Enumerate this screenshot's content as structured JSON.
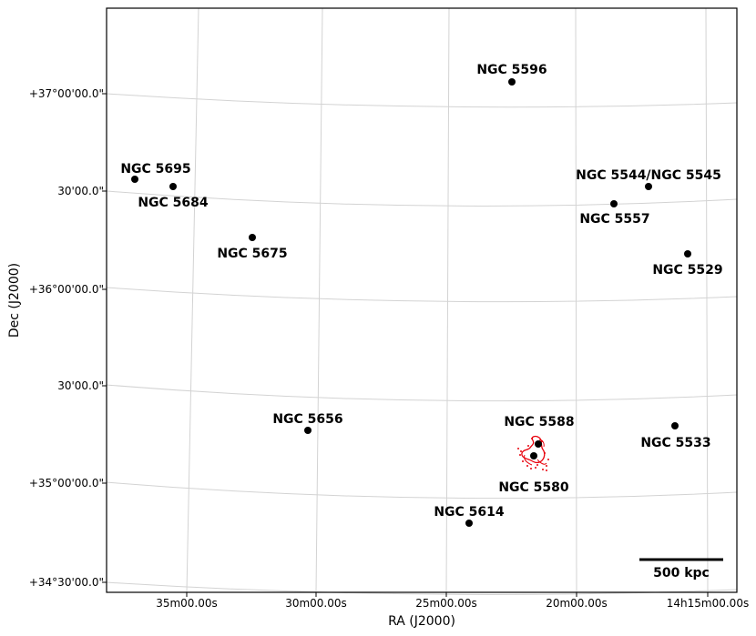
{
  "chart_data": {
    "type": "scatter",
    "xlabel": "RA (J2000)",
    "ylabel": "Dec (J2000)",
    "x_ticks": [
      "35m00.00s",
      "30m00.00s",
      "25m00.00s",
      "20m00.00s",
      "14h15m00.00s"
    ],
    "y_ticks": [
      "+37°00'00.0\"",
      "30'00.0\"",
      "+36°00'00.0\"",
      "30'00.0\"",
      "+35°00'00.0\"",
      "+34°30'00.0\""
    ],
    "grid": true,
    "scale_bar": "500 kpc",
    "points": [
      {
        "name": "NGC 5596"
      },
      {
        "name": "NGC 5695"
      },
      {
        "name": "NGC 5684"
      },
      {
        "name": "NGC 5675"
      },
      {
        "name": "NGC 5544/NGC 5545"
      },
      {
        "name": "NGC 5557"
      },
      {
        "name": "NGC 5529"
      },
      {
        "name": "NGC 5656"
      },
      {
        "name": "NGC 5588"
      },
      {
        "name": "NGC 5580"
      },
      {
        "name": "NGC 5533"
      },
      {
        "name": "NGC 5614"
      }
    ],
    "colors": {
      "points": "#000000",
      "grid": "#d3d3d3",
      "diffuse_emission": "#e8000b"
    }
  }
}
